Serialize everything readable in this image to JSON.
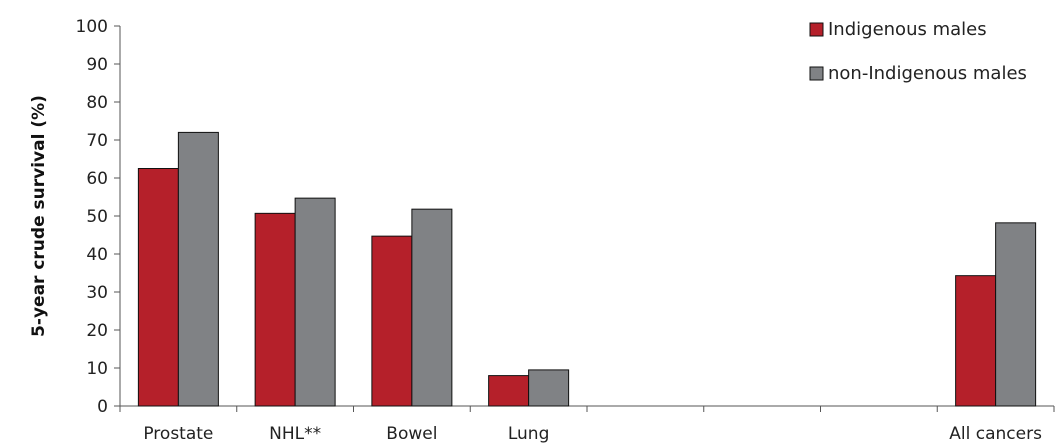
{
  "chart_data": {
    "type": "bar",
    "title": "",
    "xlabel": "",
    "ylabel": "5-year crude survival (%)",
    "ylim": [
      0,
      100
    ],
    "yticks": [
      0,
      10,
      20,
      30,
      40,
      50,
      60,
      70,
      80,
      90,
      100
    ],
    "grid": false,
    "legend_position": "top-right",
    "categories": [
      "Prostate",
      "NHL**",
      "Bowel",
      "Lung",
      "",
      "",
      "",
      "All cancers"
    ],
    "series": [
      {
        "name": "Indigenous males",
        "color": "#b5202a",
        "values": [
          62.5,
          50.7,
          44.7,
          8.0,
          null,
          null,
          null,
          34.3
        ]
      },
      {
        "name": "non-Indigenous males",
        "color": "#808285",
        "values": [
          72.0,
          54.7,
          51.8,
          9.5,
          null,
          null,
          null,
          48.2
        ]
      }
    ]
  }
}
